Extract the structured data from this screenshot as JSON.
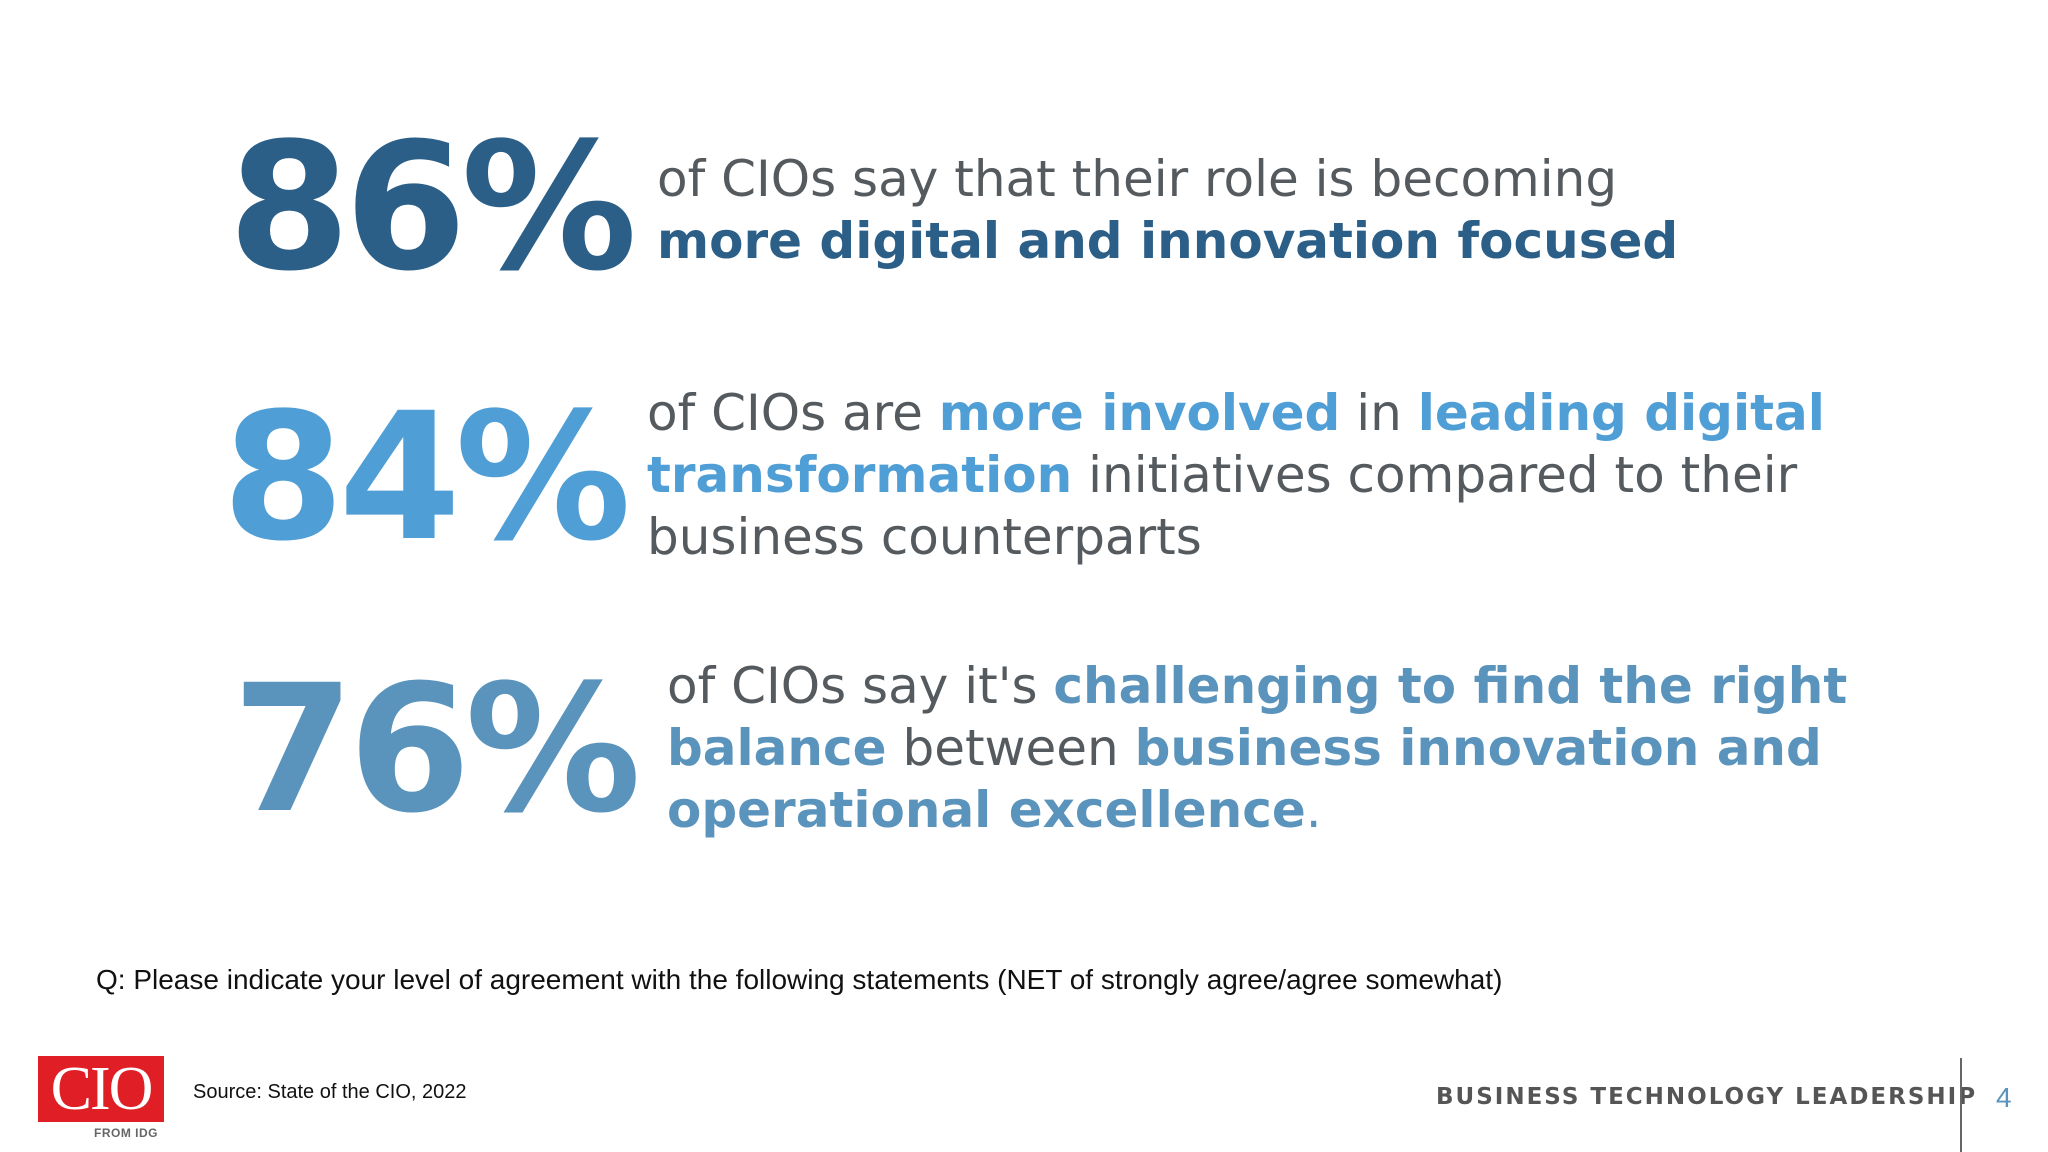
{
  "stats": [
    {
      "percent": "86%",
      "segments": [
        "of CIOs say that their role is becoming",
        "more digital and innovation focused"
      ]
    },
    {
      "percent": "84%",
      "segments": [
        "of CIOs are ",
        "more involved",
        " in ",
        "leading digital",
        "transformation",
        " initiatives compared to their",
        "business counterparts"
      ]
    },
    {
      "percent": "76%",
      "segments": [
        "of CIOs say it's ",
        "challenging to find the right",
        "balance",
        " between ",
        "business innovation and",
        "operational excellence",
        "."
      ]
    }
  ],
  "question": "Q: Please indicate your level of agreement with the following statements (NET of strongly agree/agree somewhat)",
  "logo": {
    "text": "CIO",
    "subtext": "FROM IDG"
  },
  "source": "Source: State of the CIO, 2022",
  "tagline": "BUSINESS TECHNOLOGY LEADERSHIP",
  "page_number": "4",
  "colors": {
    "dark_blue": "#2b5f87",
    "bright_blue": "#4f9ed6",
    "steel_blue": "#5a93bb",
    "body_gray": "#555a5f",
    "logo_red": "#e01e26"
  }
}
